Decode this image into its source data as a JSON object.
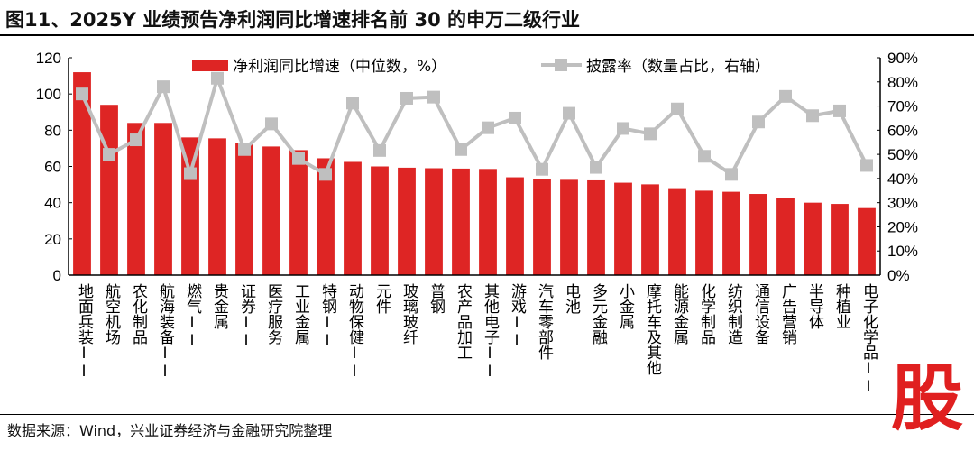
{
  "title": "图11、2025Y 业绩预告净利润同比增速排名前 30 的申万二级行业",
  "source": "数据来源：Wind，兴业证券经济与金融研究院整理",
  "watermark": "股",
  "chart_data": {
    "type": "bar+line",
    "categories": [
      "地面兵装II",
      "航空机场",
      "农化制品",
      "航海装备II",
      "燃气II",
      "贵金属",
      "证券II",
      "医疗服务",
      "工业金属",
      "特钢II",
      "动物保健II",
      "元件",
      "玻璃玻纤",
      "普钢",
      "农产品加工",
      "其他电子II",
      "游戏II",
      "汽车零部件",
      "电池",
      "多元金融",
      "小金属",
      "摩托车及其他",
      "能源金属",
      "化学制品",
      "纺织制造",
      "通信设备",
      "广告营销",
      "半导体",
      "种植业",
      "电子化学品II"
    ],
    "series": [
      {
        "name": "净利润同比增速（中位数，%）",
        "type": "bar",
        "axis": "left",
        "color": "#de2524",
        "values": [
          112,
          94,
          84,
          84,
          76,
          75.5,
          73,
          71,
          69,
          64.5,
          62.5,
          60,
          59.3,
          59,
          58.8,
          58.6,
          54,
          52.8,
          52.6,
          52.3,
          51,
          50.1,
          48,
          46.6,
          46,
          44.8,
          42.5,
          40,
          39.3,
          37
        ]
      },
      {
        "name": "披露率（数量占比，右轴）",
        "type": "line",
        "axis": "right",
        "color": "#bfbfbf",
        "marker": "square",
        "values": [
          75,
          50,
          56,
          78,
          42,
          81.5,
          52,
          62.6,
          48.3,
          41.7,
          71.2,
          51.6,
          73.2,
          73.7,
          52,
          61,
          65,
          43.8,
          67,
          44.6,
          60.7,
          58.5,
          68.8,
          49.2,
          41.7,
          63.4,
          74,
          66,
          68,
          45.4
        ]
      }
    ],
    "y_left": {
      "range": [
        0,
        120
      ],
      "ticks": [
        "0",
        "20",
        "40",
        "60",
        "80",
        "100",
        "120"
      ]
    },
    "y_right": {
      "range": [
        0,
        90
      ],
      "ticks": [
        "0%",
        "10%",
        "20%",
        "30%",
        "40%",
        "50%",
        "60%",
        "70%",
        "80%",
        "90%"
      ]
    },
    "legend": "top",
    "grid": false
  }
}
